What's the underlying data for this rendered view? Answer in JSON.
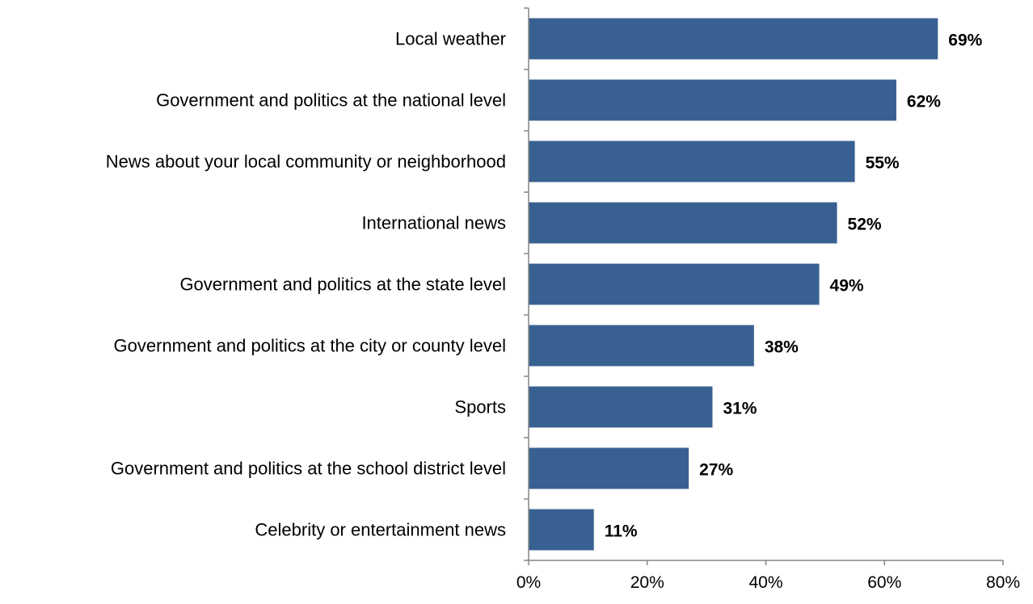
{
  "chart_data": {
    "type": "bar",
    "orientation": "horizontal",
    "categories": [
      "Local weather",
      "Government and politics at the national level",
      "News about your local community or neighborhood",
      "International news",
      "Government and politics at the state level",
      "Government and politics at the city or county level",
      "Sports",
      "Government and politics at the school district level",
      "Celebrity or entertainment news"
    ],
    "values": [
      69,
      62,
      55,
      52,
      49,
      38,
      31,
      27,
      11
    ],
    "value_labels": [
      "69%",
      "62%",
      "55%",
      "52%",
      "49%",
      "38%",
      "31%",
      "27%",
      "11%"
    ],
    "xlim": [
      0,
      80
    ],
    "x_ticks": [
      0,
      20,
      40,
      60,
      80
    ],
    "x_tick_labels": [
      "0%",
      "20%",
      "40%",
      "60%",
      "80%"
    ],
    "bar_color": "#386192",
    "axis_color": "#868686",
    "grid": false,
    "legend": "none"
  }
}
